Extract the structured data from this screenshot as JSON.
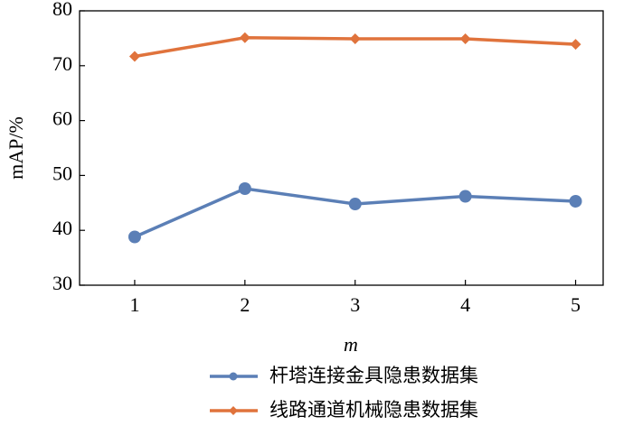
{
  "chart_data": {
    "type": "line",
    "x_label": "m",
    "y_label": "mAP/%",
    "x": [
      1,
      2,
      3,
      4,
      5
    ],
    "xlim": [
      0.5,
      5.25
    ],
    "xticks": [
      1,
      2,
      3,
      4,
      5
    ],
    "ylim": [
      30,
      80
    ],
    "yticks": [
      30,
      40,
      50,
      60,
      70,
      80
    ],
    "legend": "bottom",
    "series": [
      {
        "name": "杆塔连接金具隐患数据集",
        "color": "#5b7fb6",
        "marker": "circle",
        "values": [
          38.8,
          47.6,
          44.8,
          46.2,
          45.3
        ]
      },
      {
        "name": "线路通道机械隐患数据集",
        "color": "#e0733c",
        "marker": "diamond",
        "values": [
          71.7,
          75.1,
          74.9,
          74.9,
          73.9
        ]
      }
    ]
  }
}
